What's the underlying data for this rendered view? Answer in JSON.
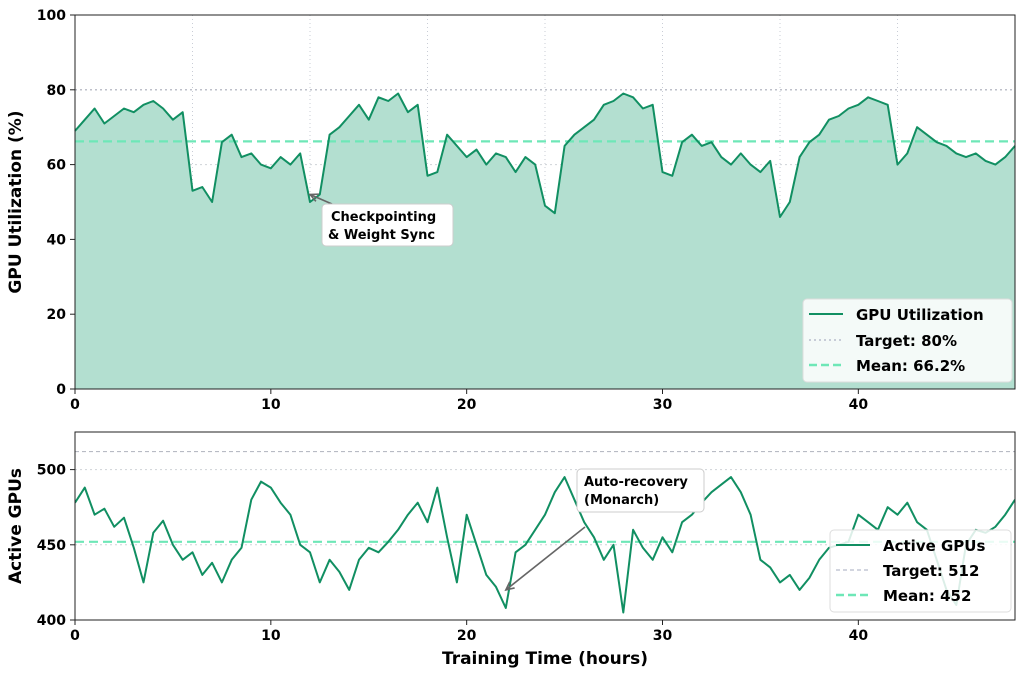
{
  "colors": {
    "line": "#118f62",
    "fill": "#b3dfd0",
    "mean": "#6ee7b7",
    "target": "#b8bccc"
  },
  "chart_data": [
    {
      "type": "area",
      "ylabel": "GPU Utilization (%)",
      "xlabel": "",
      "xlim": [
        0,
        48
      ],
      "ylim": [
        0,
        100
      ],
      "xticks": [
        0,
        10,
        20,
        30,
        40
      ],
      "yticks": [
        0,
        20,
        40,
        60,
        80,
        100
      ],
      "grid": true,
      "legend_position": "lower-right",
      "x": [
        0,
        0.5,
        1,
        1.5,
        2,
        2.5,
        3,
        3.5,
        4,
        4.5,
        5,
        5.5,
        6,
        6.5,
        7,
        7.5,
        8,
        8.5,
        9,
        9.5,
        10,
        10.5,
        11,
        11.5,
        12,
        12.5,
        13,
        13.5,
        14,
        14.5,
        15,
        15.5,
        16,
        16.5,
        17,
        17.5,
        18,
        18.5,
        19,
        19.5,
        20,
        20.5,
        21,
        21.5,
        22,
        22.5,
        23,
        23.5,
        24,
        24.5,
        25,
        25.5,
        26,
        26.5,
        27,
        27.5,
        28,
        28.5,
        29,
        29.5,
        30,
        30.5,
        31,
        31.5,
        32,
        32.5,
        33,
        33.5,
        34,
        34.5,
        35,
        35.5,
        36,
        36.5,
        37,
        37.5,
        38,
        38.5,
        39,
        39.5,
        40,
        40.5,
        41,
        41.5,
        42,
        42.5,
        43,
        43.5,
        44,
        44.5,
        45,
        45.5,
        46,
        46.5,
        47,
        47.5,
        48
      ],
      "series": [
        {
          "name": "GPU Utilization",
          "values": [
            69,
            72,
            75,
            71,
            73,
            75,
            74,
            76,
            77,
            75,
            72,
            74,
            53,
            54,
            50,
            66,
            68,
            62,
            63,
            60,
            59,
            62,
            60,
            63,
            50,
            52,
            68,
            70,
            73,
            76,
            72,
            78,
            77,
            79,
            74,
            76,
            57,
            58,
            68,
            65,
            62,
            64,
            60,
            63,
            62,
            58,
            62,
            60,
            49,
            47,
            65,
            68,
            70,
            72,
            76,
            77,
            79,
            78,
            75,
            76,
            58,
            57,
            66,
            68,
            65,
            66,
            62,
            60,
            63,
            60,
            58,
            61,
            46,
            50,
            62,
            66,
            68,
            72,
            73,
            75,
            76,
            78,
            77,
            76,
            60,
            63,
            70,
            68,
            66,
            65,
            63,
            62,
            63,
            61,
            60,
            62,
            65
          ]
        }
      ],
      "target": {
        "label": "Target: 80%",
        "value": 80
      },
      "mean": {
        "label": "Mean: 66.2%",
        "value": 66.2
      },
      "annotation": {
        "line1": "Checkpointing",
        "line2": "& Weight Sync",
        "x": 12,
        "y": 52
      }
    },
    {
      "type": "line",
      "ylabel": "Active GPUs",
      "xlabel": "Training Time (hours)",
      "xlim": [
        0,
        48
      ],
      "ylim": [
        400,
        525
      ],
      "xticks": [
        0,
        10,
        20,
        30,
        40
      ],
      "yticks": [
        400,
        450,
        500
      ],
      "grid": true,
      "legend_position": "lower-right",
      "x": [
        0,
        0.5,
        1,
        1.5,
        2,
        2.5,
        3,
        3.5,
        4,
        4.5,
        5,
        5.5,
        6,
        6.5,
        7,
        7.5,
        8,
        8.5,
        9,
        9.5,
        10,
        10.5,
        11,
        11.5,
        12,
        12.5,
        13,
        13.5,
        14,
        14.5,
        15,
        15.5,
        16,
        16.5,
        17,
        17.5,
        18,
        18.5,
        19,
        19.5,
        20,
        20.5,
        21,
        21.5,
        22,
        22.5,
        23,
        23.5,
        24,
        24.5,
        25,
        25.5,
        26,
        26.5,
        27,
        27.5,
        28,
        28.5,
        29,
        29.5,
        30,
        30.5,
        31,
        31.5,
        32,
        32.5,
        33,
        33.5,
        34,
        34.5,
        35,
        35.5,
        36,
        36.5,
        37,
        37.5,
        38,
        38.5,
        39,
        39.5,
        40,
        40.5,
        41,
        41.5,
        42,
        42.5,
        43,
        43.5,
        44,
        44.5,
        45,
        45.5,
        46,
        46.5,
        47,
        47.5,
        48
      ],
      "series": [
        {
          "name": "Active GPUs",
          "values": [
            478,
            488,
            470,
            474,
            462,
            468,
            448,
            425,
            458,
            466,
            450,
            440,
            445,
            430,
            438,
            425,
            440,
            448,
            480,
            492,
            488,
            478,
            470,
            450,
            445,
            425,
            440,
            432,
            420,
            440,
            448,
            445,
            452,
            460,
            470,
            478,
            465,
            488,
            455,
            425,
            470,
            450,
            430,
            422,
            408,
            445,
            450,
            460,
            470,
            485,
            495,
            480,
            465,
            455,
            440,
            450,
            405,
            460,
            448,
            440,
            455,
            445,
            465,
            470,
            478,
            485,
            490,
            495,
            485,
            470,
            440,
            435,
            425,
            430,
            420,
            428,
            440,
            448,
            450,
            452,
            470,
            465,
            460,
            475,
            470,
            478,
            465,
            460,
            440,
            420,
            410,
            450,
            460,
            458,
            462,
            470,
            480
          ]
        }
      ],
      "target": {
        "label": "Target: 512",
        "value": 512
      },
      "mean": {
        "label": "Mean: 452",
        "value": 452
      },
      "annotation": {
        "line1": "Auto-recovery",
        "line2": "(Monarch)",
        "x": 22,
        "y": 420
      }
    }
  ]
}
